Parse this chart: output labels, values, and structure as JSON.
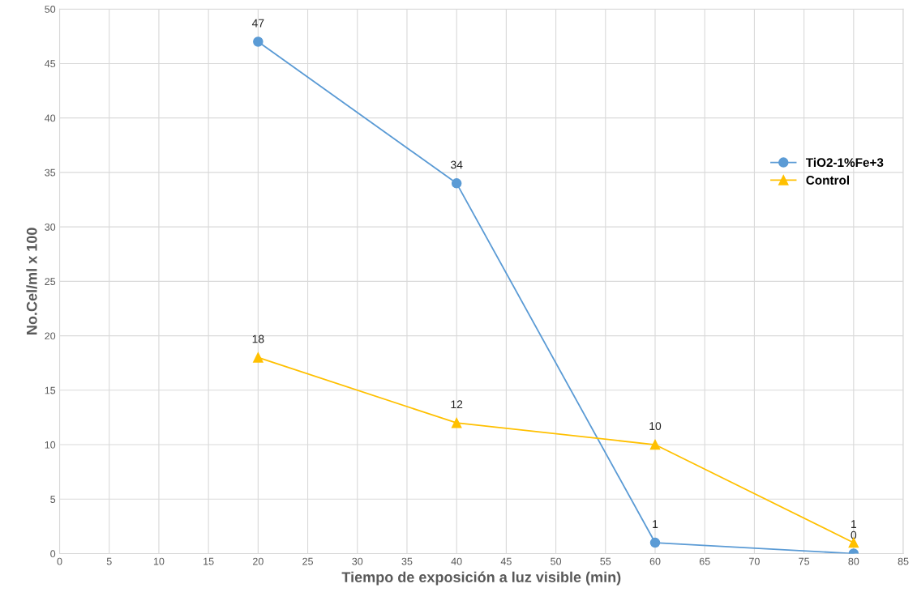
{
  "chart_data": {
    "type": "line",
    "xlabel": "Tiempo de exposición a luz visible (min)",
    "ylabel": "No.Cel/ml x 100",
    "x": [
      20,
      40,
      60,
      80
    ],
    "series": [
      {
        "name": "TiO2-1%Fe+3",
        "color": "#5b9bd5",
        "marker": "circle",
        "values": [
          47,
          34,
          1,
          0
        ]
      },
      {
        "name": "Control",
        "color": "#ffc000",
        "marker": "triangle",
        "values": [
          18,
          12,
          10,
          1
        ]
      }
    ],
    "xlim": [
      0,
      85
    ],
    "xticks": [
      0,
      5,
      10,
      15,
      20,
      25,
      30,
      35,
      40,
      45,
      50,
      55,
      60,
      65,
      70,
      75,
      80,
      85
    ],
    "ylim": [
      0,
      50
    ],
    "yticks": [
      0,
      5,
      10,
      15,
      20,
      25,
      30,
      35,
      40,
      45,
      50
    ],
    "grid": true,
    "legend": "right",
    "data_labels": true,
    "line_style": "solid"
  }
}
